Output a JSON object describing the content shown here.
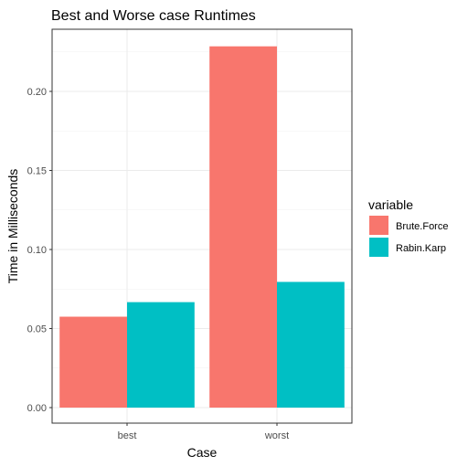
{
  "chart_data": {
    "type": "bar",
    "title": "Best and Worse case Runtimes",
    "xlabel": "Case",
    "ylabel": "Time in Milliseconds",
    "categories": [
      "best",
      "worst"
    ],
    "series": [
      {
        "name": "Brute.Force",
        "color": "#F8766D",
        "values": [
          0.0575,
          0.2285
        ]
      },
      {
        "name": "Rabin.Karp",
        "color": "#00BFC4",
        "values": [
          0.0667,
          0.0795
        ]
      }
    ],
    "ylim": [
      0,
      0.24
    ],
    "yticks": [
      0.0,
      0.05,
      0.1,
      0.15,
      0.2
    ],
    "ytick_labels": [
      "0.00",
      "0.05",
      "0.10",
      "0.15",
      "0.20"
    ],
    "grid": true,
    "legend": {
      "title": "variable",
      "placement": "right"
    }
  }
}
